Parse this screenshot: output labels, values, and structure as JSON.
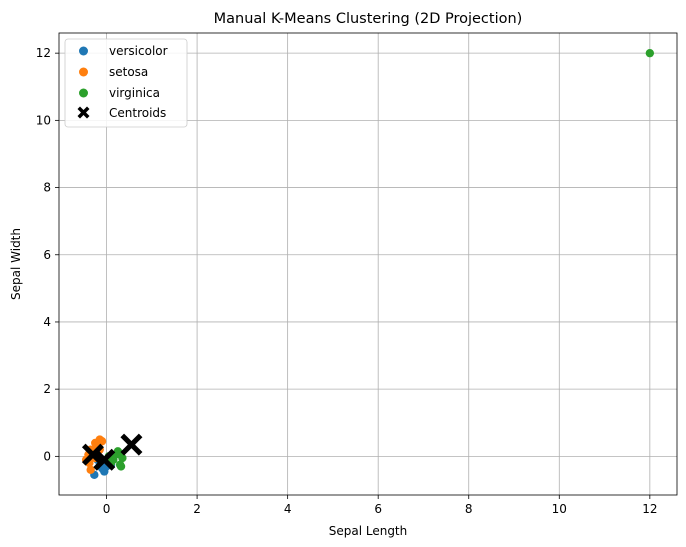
{
  "chart_data": {
    "type": "scatter",
    "title": "Manual K-Means Clustering (2D Projection)",
    "xlabel": "Sepal Length",
    "ylabel": "Sepal Width",
    "xlim": [
      -1.05,
      12.6
    ],
    "ylim": [
      -1.15,
      12.6
    ],
    "xticks": [
      0,
      2,
      4,
      6,
      8,
      10,
      12
    ],
    "yticks": [
      0,
      2,
      4,
      6,
      8,
      10,
      12
    ],
    "grid": true,
    "legend_position": "top-left",
    "series": [
      {
        "name": "versicolor",
        "color": "#1f77b4",
        "marker": "circle",
        "points": [
          [
            -0.27,
            -0.55
          ],
          [
            -0.05,
            -0.45
          ],
          [
            0.0,
            -0.3
          ],
          [
            -0.15,
            -0.2
          ],
          [
            0.05,
            -0.15
          ],
          [
            -0.1,
            -0.35
          ],
          [
            0.1,
            -0.25
          ],
          [
            -0.2,
            -0.1
          ]
        ]
      },
      {
        "name": "setosa",
        "color": "#ff7f0e",
        "marker": "circle",
        "points": [
          [
            -0.15,
            0.5
          ],
          [
            -0.25,
            0.4
          ],
          [
            -0.35,
            0.2
          ],
          [
            -0.4,
            0.05
          ],
          [
            -0.45,
            -0.1
          ],
          [
            -0.35,
            -0.4
          ],
          [
            -0.2,
            0.3
          ],
          [
            -0.1,
            0.45
          ],
          [
            -0.3,
            0.1
          ],
          [
            -0.25,
            -0.05
          ],
          [
            -0.38,
            -0.2
          ],
          [
            -0.15,
            0.2
          ]
        ]
      },
      {
        "name": "virginica",
        "color": "#2ca02c",
        "marker": "circle",
        "points": [
          [
            12.0,
            12.0
          ],
          [
            0.25,
            0.15
          ],
          [
            0.3,
            -0.25
          ],
          [
            0.15,
            -0.1
          ],
          [
            0.35,
            -0.05
          ],
          [
            0.2,
            0.05
          ],
          [
            0.1,
            -0.2
          ],
          [
            0.32,
            -0.3
          ],
          [
            0.05,
            0.0
          ],
          [
            0.28,
            0.1
          ]
        ]
      }
    ],
    "centroids": {
      "name": "Centroids",
      "color": "#000000",
      "marker": "X",
      "points": [
        [
          -0.3,
          0.05
        ],
        [
          -0.05,
          -0.1
        ],
        [
          0.55,
          0.35
        ]
      ]
    }
  }
}
